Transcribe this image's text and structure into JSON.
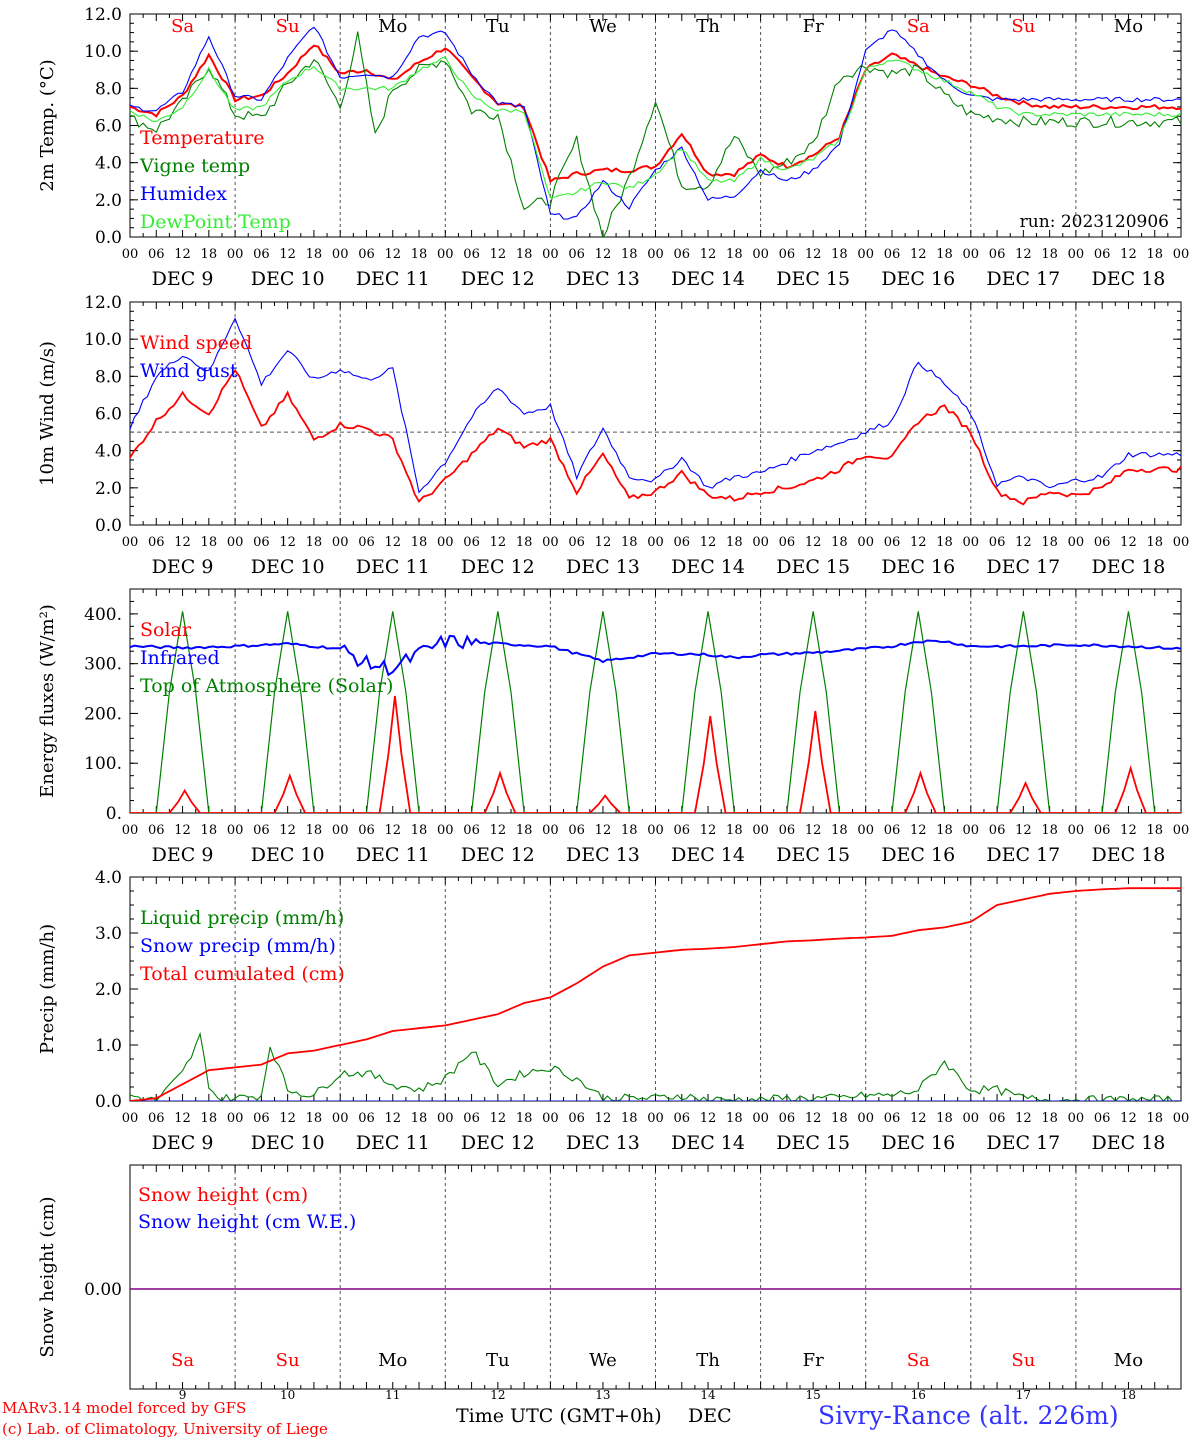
{
  "chart_data": [
    {
      "type": "line",
      "ylabel": "2m Temp. (°C)",
      "ylim": [
        0,
        12
      ],
      "yticks": [
        "0.0",
        "2.0",
        "4.0",
        "6.0",
        "8.0",
        "10.0",
        "12.0"
      ],
      "xlim_hours": [
        0,
        240
      ],
      "grid": "vertical dashed at day boundaries",
      "legend": "top-left",
      "annotation": "run: 2023120906",
      "series": [
        {
          "name": "Temperature",
          "color": "#ff0000",
          "x": [
            0,
            6,
            12,
            18,
            24,
            30,
            36,
            42,
            48,
            54,
            60,
            66,
            72,
            78,
            84,
            90,
            96,
            102,
            108,
            114,
            120,
            126,
            132,
            138,
            144,
            150,
            156,
            162,
            168,
            174,
            180,
            186,
            192,
            198,
            204,
            210,
            216,
            222,
            228,
            234,
            240
          ],
          "values": [
            7.0,
            6.6,
            7.6,
            9.8,
            7.4,
            7.6,
            8.8,
            10.4,
            8.8,
            9.0,
            8.4,
            9.4,
            10.2,
            8.6,
            7.2,
            7.0,
            3.0,
            3.4,
            3.6,
            3.6,
            3.8,
            5.6,
            3.4,
            3.4,
            4.4,
            3.8,
            4.4,
            5.4,
            9.0,
            9.8,
            9.2,
            8.6,
            8.2,
            7.6,
            7.2,
            7.0,
            7.0,
            7.0,
            7.0,
            7.0,
            7.0
          ]
        },
        {
          "name": "Vigne temp",
          "color": "#008000",
          "x": [
            0,
            6,
            12,
            18,
            24,
            30,
            36,
            42,
            48,
            52,
            56,
            60,
            66,
            72,
            78,
            84,
            90,
            96,
            102,
            108,
            114,
            120,
            126,
            132,
            138,
            144,
            150,
            156,
            162,
            168,
            174,
            180,
            186,
            192,
            198,
            204,
            210,
            216,
            222,
            228,
            234,
            240
          ],
          "values": [
            6.4,
            5.8,
            7.2,
            9.2,
            6.6,
            6.4,
            8.2,
            9.6,
            7.0,
            10.8,
            5.4,
            8.0,
            9.0,
            9.6,
            6.8,
            6.6,
            1.6,
            2.0,
            5.2,
            0.0,
            3.2,
            7.4,
            2.8,
            2.8,
            5.4,
            3.4,
            4.0,
            5.0,
            8.6,
            9.2,
            8.8,
            9.0,
            7.6,
            6.6,
            6.4,
            6.2,
            6.2,
            6.2,
            6.2,
            6.2,
            6.2,
            6.2
          ]
        },
        {
          "name": "Humidex",
          "color": "#0000ff",
          "x": [
            0,
            6,
            12,
            18,
            24,
            30,
            36,
            42,
            48,
            54,
            60,
            66,
            72,
            78,
            84,
            90,
            96,
            102,
            108,
            114,
            120,
            126,
            132,
            138,
            144,
            150,
            156,
            162,
            168,
            174,
            180,
            186,
            192,
            198,
            204,
            210,
            216,
            222,
            228,
            234,
            240
          ],
          "values": [
            7.0,
            6.8,
            7.8,
            10.8,
            7.6,
            7.4,
            9.6,
            11.4,
            8.6,
            8.8,
            8.6,
            10.8,
            11.0,
            8.8,
            7.2,
            7.0,
            1.2,
            1.0,
            3.0,
            1.6,
            3.6,
            4.8,
            2.0,
            2.2,
            3.6,
            3.0,
            3.6,
            5.0,
            10.0,
            11.2,
            9.8,
            8.4,
            7.6,
            7.4,
            7.4,
            7.4,
            7.4,
            7.4,
            7.4,
            7.4,
            7.4
          ]
        },
        {
          "name": "DewPoint Temp",
          "color": "#33ee33",
          "x": [
            0,
            6,
            12,
            18,
            24,
            30,
            36,
            42,
            48,
            54,
            60,
            66,
            72,
            78,
            84,
            90,
            96,
            102,
            108,
            114,
            120,
            126,
            132,
            138,
            144,
            150,
            156,
            162,
            168,
            174,
            180,
            186,
            192,
            198,
            204,
            210,
            216,
            222,
            228,
            234,
            240
          ],
          "values": [
            6.8,
            6.2,
            7.0,
            9.0,
            6.8,
            7.0,
            8.4,
            9.2,
            8.0,
            8.0,
            8.0,
            9.0,
            9.6,
            7.6,
            6.8,
            6.8,
            2.0,
            2.4,
            3.0,
            2.6,
            3.4,
            4.8,
            3.0,
            3.0,
            4.2,
            3.6,
            4.2,
            5.2,
            9.0,
            9.6,
            9.0,
            8.4,
            7.8,
            7.0,
            6.6,
            6.6,
            6.6,
            6.6,
            6.6,
            6.6,
            6.6
          ]
        }
      ]
    },
    {
      "type": "line",
      "ylabel": "10m Wind (m/s)",
      "ylim": [
        0,
        12
      ],
      "yticks": [
        "0.0",
        "2.0",
        "4.0",
        "6.0",
        "8.0",
        "10.0",
        "12.0"
      ],
      "reference_line": 5.0,
      "legend": "top-left",
      "series": [
        {
          "name": "Wind speed",
          "color": "#ff0000",
          "x": [
            0,
            6,
            12,
            18,
            24,
            30,
            36,
            42,
            48,
            54,
            60,
            66,
            72,
            78,
            84,
            90,
            96,
            102,
            108,
            114,
            120,
            126,
            132,
            138,
            144,
            150,
            156,
            162,
            168,
            174,
            180,
            186,
            192,
            198,
            204,
            210,
            216,
            222,
            228,
            234,
            240
          ],
          "values": [
            3.6,
            5.6,
            7.0,
            6.0,
            8.4,
            5.2,
            7.0,
            4.6,
            5.4,
            5.2,
            4.6,
            1.2,
            2.4,
            3.8,
            5.2,
            4.2,
            4.6,
            1.8,
            3.8,
            1.4,
            1.8,
            2.8,
            1.6,
            1.4,
            1.8,
            2.0,
            2.4,
            3.0,
            3.8,
            3.6,
            5.6,
            6.4,
            5.0,
            1.8,
            1.2,
            1.8,
            1.6,
            2.0,
            3.0,
            3.0,
            3.0
          ]
        },
        {
          "name": "Wind gust",
          "color": "#0000ff",
          "x": [
            0,
            6,
            12,
            18,
            24,
            30,
            36,
            42,
            48,
            54,
            60,
            66,
            72,
            78,
            84,
            90,
            96,
            102,
            108,
            114,
            120,
            126,
            132,
            138,
            144,
            150,
            156,
            162,
            168,
            174,
            180,
            186,
            192,
            198,
            204,
            210,
            216,
            222,
            228,
            234,
            240
          ],
          "values": [
            5.2,
            8.0,
            9.2,
            8.2,
            11.2,
            7.6,
            9.4,
            7.8,
            8.4,
            7.8,
            8.4,
            1.8,
            3.4,
            5.8,
            7.4,
            6.0,
            6.4,
            2.6,
            5.2,
            2.6,
            2.4,
            3.6,
            2.0,
            2.6,
            2.8,
            3.4,
            4.0,
            4.4,
            5.0,
            5.6,
            8.8,
            7.6,
            6.0,
            2.2,
            2.6,
            2.0,
            2.4,
            2.6,
            3.8,
            3.8,
            3.8
          ]
        }
      ]
    },
    {
      "type": "line",
      "ylabel": "Energy fluxes (W/m²)",
      "ylim": [
        0,
        450
      ],
      "yticks": [
        "0.",
        "100.",
        "200.",
        "300.",
        "400."
      ],
      "legend": "top-left",
      "series": [
        {
          "name": "Solar",
          "color": "#ff0000",
          "peaks": [
            45,
            75,
            235,
            80,
            35,
            195,
            205,
            80,
            60,
            90
          ]
        },
        {
          "name": "Infrared",
          "color": "#0000ff",
          "x": [
            0,
            12,
            24,
            36,
            48,
            54,
            60,
            66,
            72,
            84,
            96,
            108,
            120,
            126,
            132,
            138,
            144,
            156,
            168,
            174,
            180,
            186,
            192,
            204,
            216,
            228,
            240
          ],
          "values": [
            335,
            332,
            335,
            340,
            330,
            300,
            290,
            320,
            345,
            340,
            335,
            305,
            320,
            320,
            318,
            312,
            318,
            322,
            330,
            335,
            345,
            345,
            335,
            335,
            338,
            335,
            330
          ]
        },
        {
          "name": "Top of Atmosphere (Solar)",
          "color": "#008000",
          "peak": 405
        }
      ]
    },
    {
      "type": "line",
      "ylabel": "Precip (mm/h)",
      "ylim": [
        0,
        4
      ],
      "yticks": [
        "0.0",
        "1.0",
        "2.0",
        "3.0",
        "4.0"
      ],
      "legend": "top-left",
      "series": [
        {
          "name": "Liquid precip (mm/h)",
          "color": "#008000",
          "x": [
            0,
            6,
            12,
            14,
            16,
            18,
            20,
            24,
            30,
            32,
            36,
            42,
            48,
            54,
            60,
            66,
            72,
            78,
            84,
            90,
            96,
            102,
            108,
            114,
            120,
            126,
            132,
            138,
            144,
            150,
            156,
            162,
            168,
            174,
            180,
            186,
            192,
            198,
            204,
            210,
            216,
            222,
            228,
            234,
            240
          ],
          "values": [
            0.1,
            0.0,
            0.5,
            0.8,
            1.15,
            0.3,
            0.05,
            0.05,
            0.1,
            1.0,
            0.2,
            0.1,
            0.5,
            0.5,
            0.3,
            0.2,
            0.4,
            0.9,
            0.3,
            0.5,
            0.6,
            0.4,
            0.05,
            0.05,
            0.05,
            0.1,
            0.02,
            0.02,
            0.02,
            0.05,
            0.05,
            0.05,
            0.1,
            0.1,
            0.2,
            0.7,
            0.2,
            0.2,
            0.05,
            0.02,
            0.02,
            0.02,
            0.02,
            0.02,
            0.02
          ]
        },
        {
          "name": "Snow precip (mm/h)",
          "color": "#0000ff",
          "x": [
            0,
            240
          ],
          "values": [
            0.0,
            0.0
          ]
        },
        {
          "name": "Total cumulated (cm)",
          "color": "#ff0000",
          "x": [
            0,
            6,
            12,
            18,
            24,
            30,
            36,
            42,
            48,
            54,
            60,
            66,
            72,
            78,
            84,
            90,
            96,
            102,
            108,
            114,
            120,
            126,
            132,
            138,
            144,
            150,
            156,
            162,
            168,
            174,
            180,
            186,
            192,
            198,
            204,
            210,
            216,
            222,
            228,
            234,
            240
          ],
          "values": [
            0.0,
            0.05,
            0.3,
            0.55,
            0.6,
            0.65,
            0.85,
            0.9,
            1.0,
            1.1,
            1.25,
            1.3,
            1.35,
            1.45,
            1.55,
            1.75,
            1.85,
            2.1,
            2.4,
            2.6,
            2.65,
            2.7,
            2.72,
            2.75,
            2.8,
            2.85,
            2.87,
            2.9,
            2.92,
            2.95,
            3.05,
            3.1,
            3.2,
            3.5,
            3.6,
            3.7,
            3.75,
            3.78,
            3.8,
            3.8,
            3.8
          ]
        }
      ]
    },
    {
      "type": "line",
      "ylabel": "Snow height (cm)",
      "yticks": [
        "0.00"
      ],
      "legend": "top-left",
      "series": [
        {
          "name": "Snow height (cm)",
          "color": "#ff0000",
          "x": [
            0,
            240
          ],
          "values": [
            0,
            0
          ]
        },
        {
          "name": "Snow height (cm W.E.)",
          "color": "#0000ff",
          "x": [
            0,
            240
          ],
          "values": [
            0,
            0
          ]
        }
      ]
    }
  ],
  "weekdays": [
    "Sa",
    "Su",
    "Mo",
    "Tu",
    "We",
    "Th",
    "Fr",
    "Sa",
    "Su",
    "Mo"
  ],
  "weekday_colors": [
    "#ff0000",
    "#ff0000",
    "#000000",
    "#000000",
    "#000000",
    "#000000",
    "#000000",
    "#ff0000",
    "#ff0000",
    "#000000"
  ],
  "day_labels": [
    "DEC  9",
    "DEC 10",
    "DEC 11",
    "DEC 12",
    "DEC 13",
    "DEC 14",
    "DEC 15",
    "DEC 16",
    "DEC 17",
    "DEC 18"
  ],
  "day_numbers": [
    "9",
    "10",
    "11",
    "12",
    "13",
    "14",
    "15",
    "16",
    "17",
    "18"
  ],
  "hour_ticks": [
    "00",
    "06",
    "12",
    "18"
  ],
  "hour_tick_end": "00",
  "footer": {
    "model": "MARv3.14 model forced by GFS",
    "copyright": "(c) Lab. of Climatology, University of Liege",
    "xlabel": "Time UTC (GMT+0h)",
    "month": "DEC",
    "station": "Sivry-Rance (alt. 226m)"
  }
}
